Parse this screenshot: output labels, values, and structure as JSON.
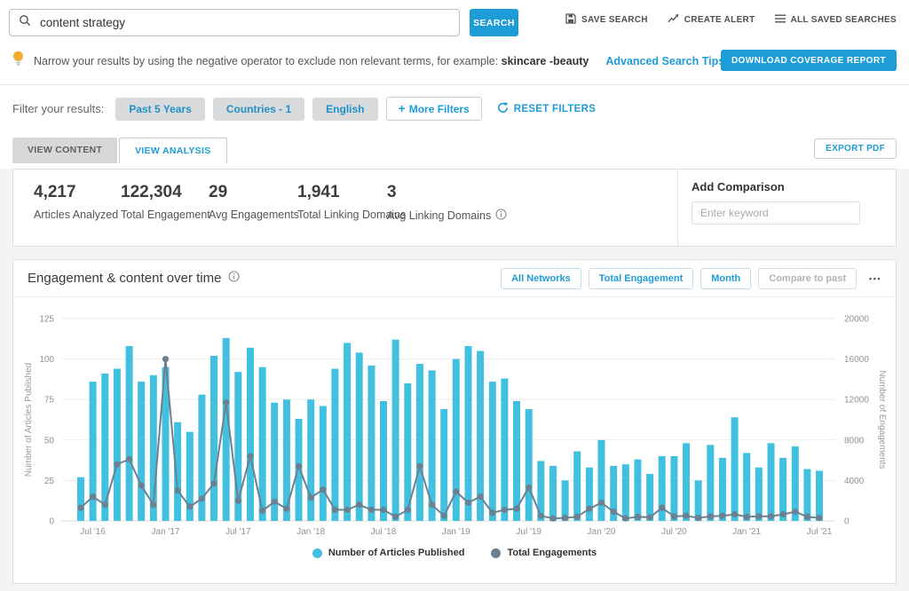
{
  "search": {
    "query": "content strategy",
    "button": "SEARCH"
  },
  "header_actions": [
    {
      "label": "SAVE SEARCH"
    },
    {
      "label": "CREATE ALERT"
    },
    {
      "label": "ALL SAVED SEARCHES"
    }
  ],
  "tip": {
    "text_before": "Narrow your results by using the negative operator to exclude non relevant terms, for example: ",
    "example": "skincare -beauty",
    "link": "Advanced Search Tips"
  },
  "download_button": "DOWNLOAD COVERAGE REPORT",
  "filters": {
    "label": "Filter your results:",
    "pills": [
      "Past 5 Years",
      "Countries - 1",
      "English"
    ],
    "more_filters": "More Filters",
    "reset": "RESET FILTERS"
  },
  "tabs": {
    "view_content": "VIEW CONTENT",
    "view_analysis": "VIEW ANALYSIS",
    "export_pdf": "EXPORT PDF"
  },
  "stats": [
    {
      "value": "4,217",
      "label": "Articles Analyzed"
    },
    {
      "value": "122,304",
      "label": "Total Engagement"
    },
    {
      "value": "29",
      "label": "Avg Engagements"
    },
    {
      "value": "1,941",
      "label": "Total Linking Domains"
    },
    {
      "value": "3",
      "label": "Avg Linking Domains"
    }
  ],
  "comparison": {
    "title": "Add Comparison",
    "placeholder": "Enter keyword"
  },
  "chart": {
    "title": "Engagement & content over time",
    "controls": [
      "All Networks",
      "Total Engagement",
      "Month",
      "Compare to past"
    ]
  },
  "icons": {
    "plus": "+",
    "ellipsis": "•••"
  },
  "colors": {
    "accent_blue": "#1e9cd8",
    "bar_cyan": "#41c0e0",
    "line_slate": "#6d8090",
    "pill_bg": "#d9dadb"
  },
  "chart_data": {
    "type": "bar",
    "title": "Engagement & content over time",
    "categories": [
      "Jun '16",
      "Jul '16",
      "Aug '16",
      "Sep '16",
      "Oct '16",
      "Nov '16",
      "Dec '16",
      "Jan '17",
      "Feb '17",
      "Mar '17",
      "Apr '17",
      "May '17",
      "Jun '17",
      "Jul '17",
      "Aug '17",
      "Sep '17",
      "Oct '17",
      "Nov '17",
      "Dec '17",
      "Jan '18",
      "Feb '18",
      "Mar '18",
      "Apr '18",
      "May '18",
      "Jun '18",
      "Jul '18",
      "Aug '18",
      "Sep '18",
      "Oct '18",
      "Nov '18",
      "Dec '18",
      "Jan '19",
      "Feb '19",
      "Mar '19",
      "Apr '19",
      "May '19",
      "Jun '19",
      "Jul '19",
      "Aug '19",
      "Sep '19",
      "Oct '19",
      "Nov '19",
      "Dec '19",
      "Jan '20",
      "Feb '20",
      "Mar '20",
      "Apr '20",
      "May '20",
      "Jun '20",
      "Jul '20",
      "Aug '20",
      "Sep '20",
      "Oct '20",
      "Nov '20",
      "Dec '20",
      "Jan '21",
      "Feb '21",
      "Mar '21",
      "Apr '21",
      "May '21",
      "Jun '21",
      "Jul '21"
    ],
    "x_ticks": [
      "Jul '16",
      "Jan '17",
      "Jul '17",
      "Jan '18",
      "Jul '18",
      "Jan '19",
      "Jul '19",
      "Jan '20",
      "Jul '20",
      "Jan '21",
      "Jul '21"
    ],
    "series": [
      {
        "name": "Number of Articles Published",
        "type": "bar",
        "axis": "left",
        "values": [
          27,
          86,
          91,
          94,
          108,
          86,
          90,
          95,
          61,
          55,
          78,
          102,
          113,
          92,
          107,
          95,
          73,
          75,
          63,
          75,
          71,
          94,
          110,
          104,
          96,
          74,
          112,
          85,
          97,
          93,
          69,
          100,
          108,
          105,
          86,
          88,
          74,
          69,
          37,
          34,
          25,
          43,
          33,
          50,
          34,
          35,
          38,
          29,
          40,
          40,
          48,
          25,
          47,
          39,
          64,
          42,
          33,
          48,
          39,
          46,
          32,
          31
        ]
      },
      {
        "name": "Total Engagements",
        "type": "line",
        "axis": "right",
        "values": [
          1300,
          2400,
          1600,
          5600,
          6100,
          3500,
          1600,
          16000,
          3000,
          1400,
          2200,
          3700,
          11700,
          2000,
          6400,
          1000,
          1900,
          1200,
          5400,
          2300,
          3100,
          1100,
          1100,
          1600,
          1100,
          1100,
          400,
          1100,
          5400,
          1600,
          500,
          2900,
          1800,
          2400,
          800,
          1100,
          1200,
          3300,
          500,
          250,
          300,
          400,
          1200,
          1800,
          900,
          250,
          400,
          350,
          1300,
          450,
          500,
          300,
          450,
          500,
          650,
          400,
          450,
          450,
          650,
          900,
          400,
          300
        ]
      }
    ],
    "ylabel_left": "Number of Articles Published",
    "ylabel_right": "Number of Engagements",
    "ylim_left": [
      0,
      125
    ],
    "ylim_right": [
      0,
      20000
    ],
    "yticks_left": [
      0,
      25,
      50,
      75,
      100,
      125
    ],
    "yticks_right": [
      0,
      4000,
      8000,
      12000,
      16000,
      20000
    ],
    "grid": true,
    "legend_position": "bottom"
  }
}
